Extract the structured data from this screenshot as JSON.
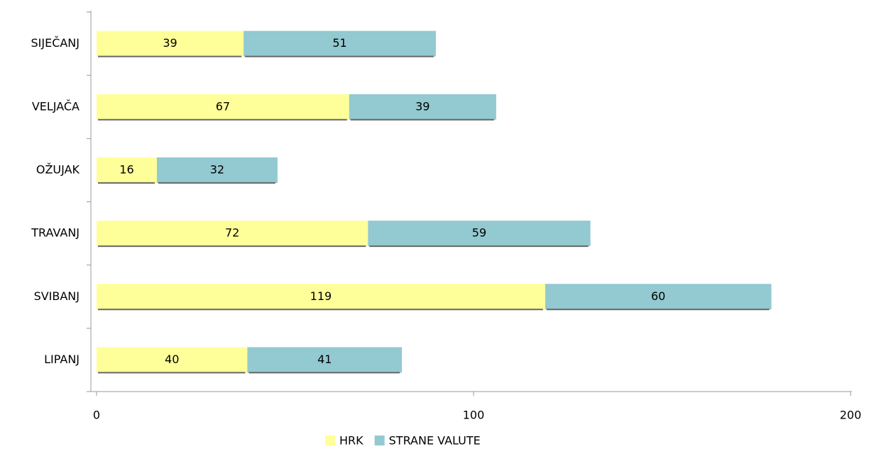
{
  "chart_data": {
    "type": "stacked_barh",
    "categories": [
      "SIJEČANJ",
      "VELJAČA",
      "OŽUJAK",
      "TRAVANJ",
      "SVIBANJ",
      "LIPANJ"
    ],
    "series": [
      {
        "name": "HRK",
        "color": "#ffff99",
        "values": [
          39,
          67,
          16,
          72,
          119,
          40
        ]
      },
      {
        "name": "STRANE VALUTE",
        "color": "#93c9d0",
        "values": [
          51,
          39,
          32,
          59,
          60,
          41
        ]
      }
    ],
    "xlim": [
      0,
      200
    ],
    "xticks": [
      0,
      100,
      200
    ],
    "legend": "bottom"
  }
}
